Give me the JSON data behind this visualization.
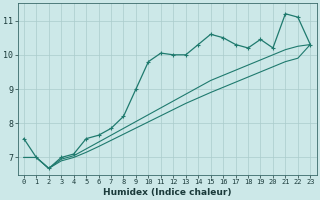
{
  "xlabel": "Humidex (Indice chaleur)",
  "xlim": [
    -0.5,
    23.5
  ],
  "ylim": [
    6.5,
    11.5
  ],
  "yticks": [
    7,
    8,
    9,
    10,
    11
  ],
  "xticks": [
    0,
    1,
    2,
    3,
    4,
    5,
    6,
    7,
    8,
    9,
    10,
    11,
    12,
    13,
    14,
    15,
    16,
    17,
    18,
    19,
    20,
    21,
    22,
    23
  ],
  "bg_color": "#cce8e8",
  "line_color": "#1f7a6e",
  "grid_color": "#aacccc",
  "line1_x": [
    0,
    1,
    2,
    3,
    4,
    5,
    6,
    7,
    8,
    9,
    10,
    11,
    12,
    13,
    14,
    15,
    16,
    17,
    18,
    19,
    20,
    21,
    22,
    23
  ],
  "line1_y": [
    7.55,
    7.0,
    6.68,
    7.0,
    7.1,
    7.55,
    7.65,
    7.85,
    8.2,
    9.0,
    9.8,
    10.05,
    10.0,
    10.0,
    10.3,
    10.6,
    10.5,
    10.3,
    10.2,
    10.45,
    10.2,
    11.2,
    11.1,
    10.3
  ],
  "line2_x": [
    0,
    1,
    2,
    3,
    4,
    5,
    6,
    7,
    8,
    9,
    10,
    11,
    12,
    13,
    14,
    15,
    16,
    17,
    18,
    19,
    20,
    21,
    22,
    23
  ],
  "line2_y": [
    7.0,
    7.0,
    6.68,
    6.95,
    7.05,
    7.25,
    7.45,
    7.65,
    7.85,
    8.05,
    8.25,
    8.45,
    8.65,
    8.85,
    9.05,
    9.25,
    9.4,
    9.55,
    9.7,
    9.85,
    10.0,
    10.15,
    10.25,
    10.3
  ],
  "line3_x": [
    0,
    1,
    2,
    3,
    4,
    5,
    6,
    7,
    8,
    9,
    10,
    11,
    12,
    13,
    14,
    15,
    16,
    17,
    18,
    19,
    20,
    21,
    22,
    23
  ],
  "line3_y": [
    7.0,
    7.0,
    6.68,
    6.9,
    7.0,
    7.15,
    7.32,
    7.5,
    7.68,
    7.86,
    8.04,
    8.22,
    8.4,
    8.58,
    8.74,
    8.9,
    9.05,
    9.2,
    9.35,
    9.5,
    9.65,
    9.8,
    9.9,
    10.3
  ]
}
